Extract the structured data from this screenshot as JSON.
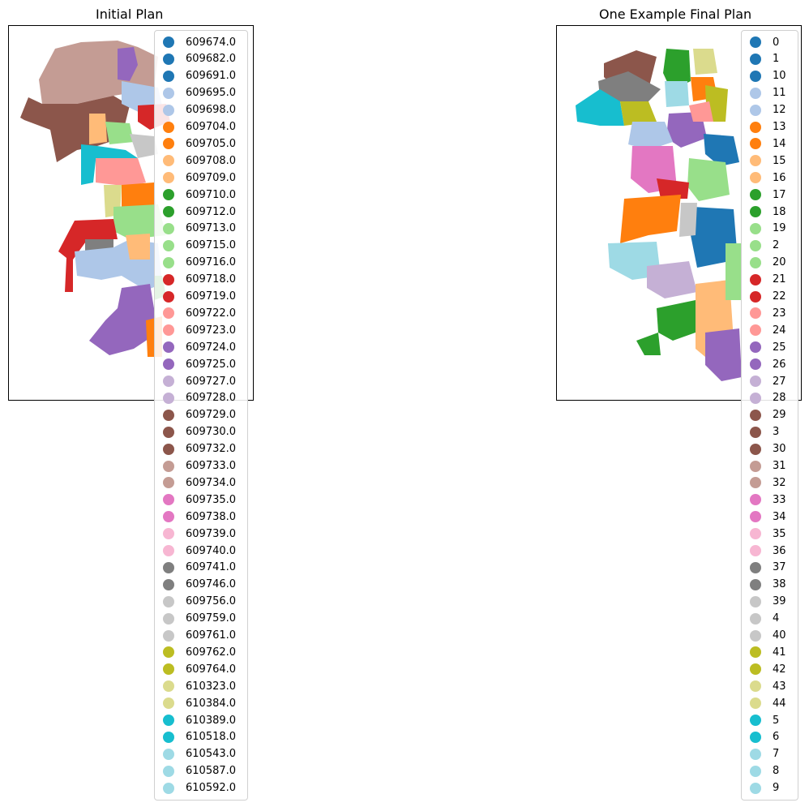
{
  "panels": [
    {
      "title": "Initial Plan",
      "legend": [
        {
          "label": "609674.0",
          "color": "#1f77b4"
        },
        {
          "label": "609682.0",
          "color": "#1f77b4"
        },
        {
          "label": "609691.0",
          "color": "#1f77b4"
        },
        {
          "label": "609695.0",
          "color": "#aec7e8"
        },
        {
          "label": "609698.0",
          "color": "#aec7e8"
        },
        {
          "label": "609704.0",
          "color": "#ff7f0e"
        },
        {
          "label": "609705.0",
          "color": "#ff7f0e"
        },
        {
          "label": "609708.0",
          "color": "#ffbb78"
        },
        {
          "label": "609709.0",
          "color": "#ffbb78"
        },
        {
          "label": "609710.0",
          "color": "#2ca02c"
        },
        {
          "label": "609712.0",
          "color": "#2ca02c"
        },
        {
          "label": "609713.0",
          "color": "#98df8a"
        },
        {
          "label": "609715.0",
          "color": "#98df8a"
        },
        {
          "label": "609716.0",
          "color": "#98df8a"
        },
        {
          "label": "609718.0",
          "color": "#d62728"
        },
        {
          "label": "609719.0",
          "color": "#d62728"
        },
        {
          "label": "609722.0",
          "color": "#ff9896"
        },
        {
          "label": "609723.0",
          "color": "#ff9896"
        },
        {
          "label": "609724.0",
          "color": "#9467bd"
        },
        {
          "label": "609725.0",
          "color": "#9467bd"
        },
        {
          "label": "609727.0",
          "color": "#c5b0d5"
        },
        {
          "label": "609728.0",
          "color": "#c5b0d5"
        },
        {
          "label": "609729.0",
          "color": "#8c564b"
        },
        {
          "label": "609730.0",
          "color": "#8c564b"
        },
        {
          "label": "609732.0",
          "color": "#8c564b"
        },
        {
          "label": "609733.0",
          "color": "#c49c94"
        },
        {
          "label": "609734.0",
          "color": "#c49c94"
        },
        {
          "label": "609735.0",
          "color": "#e377c2"
        },
        {
          "label": "609738.0",
          "color": "#e377c2"
        },
        {
          "label": "609739.0",
          "color": "#f7b6d2"
        },
        {
          "label": "609740.0",
          "color": "#f7b6d2"
        },
        {
          "label": "609741.0",
          "color": "#7f7f7f"
        },
        {
          "label": "609746.0",
          "color": "#7f7f7f"
        },
        {
          "label": "609756.0",
          "color": "#c7c7c7"
        },
        {
          "label": "609759.0",
          "color": "#c7c7c7"
        },
        {
          "label": "609761.0",
          "color": "#c7c7c7"
        },
        {
          "label": "609762.0",
          "color": "#bcbd22"
        },
        {
          "label": "609764.0",
          "color": "#bcbd22"
        },
        {
          "label": "610323.0",
          "color": "#dbdb8d"
        },
        {
          "label": "610384.0",
          "color": "#dbdb8d"
        },
        {
          "label": "610389.0",
          "color": "#17becf"
        },
        {
          "label": "610518.0",
          "color": "#17becf"
        },
        {
          "label": "610543.0",
          "color": "#9edae5"
        },
        {
          "label": "610587.0",
          "color": "#9edae5"
        },
        {
          "label": "610592.0",
          "color": "#9edae5"
        }
      ]
    },
    {
      "title": "One Example Final Plan",
      "legend": [
        {
          "label": "0",
          "color": "#1f77b4"
        },
        {
          "label": "1",
          "color": "#1f77b4"
        },
        {
          "label": "10",
          "color": "#1f77b4"
        },
        {
          "label": "11",
          "color": "#aec7e8"
        },
        {
          "label": "12",
          "color": "#aec7e8"
        },
        {
          "label": "13",
          "color": "#ff7f0e"
        },
        {
          "label": "14",
          "color": "#ff7f0e"
        },
        {
          "label": "15",
          "color": "#ffbb78"
        },
        {
          "label": "16",
          "color": "#ffbb78"
        },
        {
          "label": "17",
          "color": "#2ca02c"
        },
        {
          "label": "18",
          "color": "#2ca02c"
        },
        {
          "label": "19",
          "color": "#98df8a"
        },
        {
          "label": "2",
          "color": "#98df8a"
        },
        {
          "label": "20",
          "color": "#98df8a"
        },
        {
          "label": "21",
          "color": "#d62728"
        },
        {
          "label": "22",
          "color": "#d62728"
        },
        {
          "label": "23",
          "color": "#ff9896"
        },
        {
          "label": "24",
          "color": "#ff9896"
        },
        {
          "label": "25",
          "color": "#9467bd"
        },
        {
          "label": "26",
          "color": "#9467bd"
        },
        {
          "label": "27",
          "color": "#c5b0d5"
        },
        {
          "label": "28",
          "color": "#c5b0d5"
        },
        {
          "label": "29",
          "color": "#8c564b"
        },
        {
          "label": "3",
          "color": "#8c564b"
        },
        {
          "label": "30",
          "color": "#8c564b"
        },
        {
          "label": "31",
          "color": "#c49c94"
        },
        {
          "label": "32",
          "color": "#c49c94"
        },
        {
          "label": "33",
          "color": "#e377c2"
        },
        {
          "label": "34",
          "color": "#e377c2"
        },
        {
          "label": "35",
          "color": "#f7b6d2"
        },
        {
          "label": "36",
          "color": "#f7b6d2"
        },
        {
          "label": "37",
          "color": "#7f7f7f"
        },
        {
          "label": "38",
          "color": "#7f7f7f"
        },
        {
          "label": "39",
          "color": "#c7c7c7"
        },
        {
          "label": "4",
          "color": "#c7c7c7"
        },
        {
          "label": "40",
          "color": "#c7c7c7"
        },
        {
          "label": "41",
          "color": "#bcbd22"
        },
        {
          "label": "42",
          "color": "#bcbd22"
        },
        {
          "label": "43",
          "color": "#dbdb8d"
        },
        {
          "label": "44",
          "color": "#dbdb8d"
        },
        {
          "label": "5",
          "color": "#17becf"
        },
        {
          "label": "6",
          "color": "#17becf"
        },
        {
          "label": "7",
          "color": "#9edae5"
        },
        {
          "label": "8",
          "color": "#9edae5"
        },
        {
          "label": "9",
          "color": "#9edae5"
        }
      ]
    }
  ]
}
